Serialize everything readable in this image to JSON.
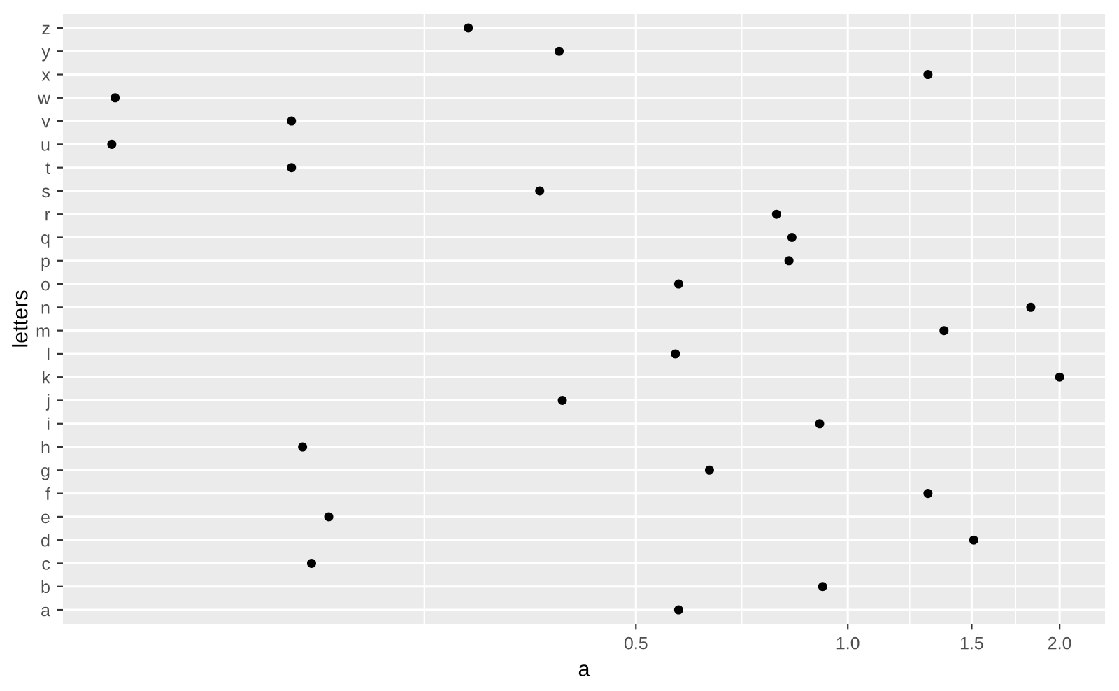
{
  "chart_data": {
    "type": "scatter",
    "orientation": "horizontal",
    "xlabel": "a",
    "ylabel": "letters",
    "categories": [
      "z",
      "y",
      "x",
      "w",
      "v",
      "u",
      "t",
      "s",
      "r",
      "q",
      "p",
      "o",
      "n",
      "m",
      "l",
      "k",
      "j",
      "i",
      "h",
      "g",
      "f",
      "e",
      "d",
      "c",
      "b",
      "a"
    ],
    "series": [
      {
        "color": "#000000",
        "values": [
          0.289,
          0.389,
          1.3,
          0.091,
          0.162,
          0.09,
          0.162,
          0.365,
          0.792,
          0.833,
          0.825,
          0.575,
          1.82,
          1.37,
          0.569,
          2.0,
          0.393,
          0.912,
          0.168,
          0.636,
          1.3,
          0.183,
          1.51,
          0.173,
          0.921,
          0.575
        ]
      }
    ],
    "log": "x",
    "xlim": [
      0.0767,
      2.32
    ],
    "xticks": [
      {
        "value": 0.25,
        "label": null
      },
      {
        "value": 0.5,
        "label": "0.5"
      },
      {
        "value": 0.7071,
        "label": null
      },
      {
        "value": 1,
        "label": "1.0"
      },
      {
        "value": 1.2247,
        "label": null
      },
      {
        "value": 1.5,
        "label": "1.5"
      },
      {
        "value": 1.7321,
        "label": null
      },
      {
        "value": 2,
        "label": "2.0"
      }
    ],
    "grid": true,
    "marker": "circle"
  }
}
